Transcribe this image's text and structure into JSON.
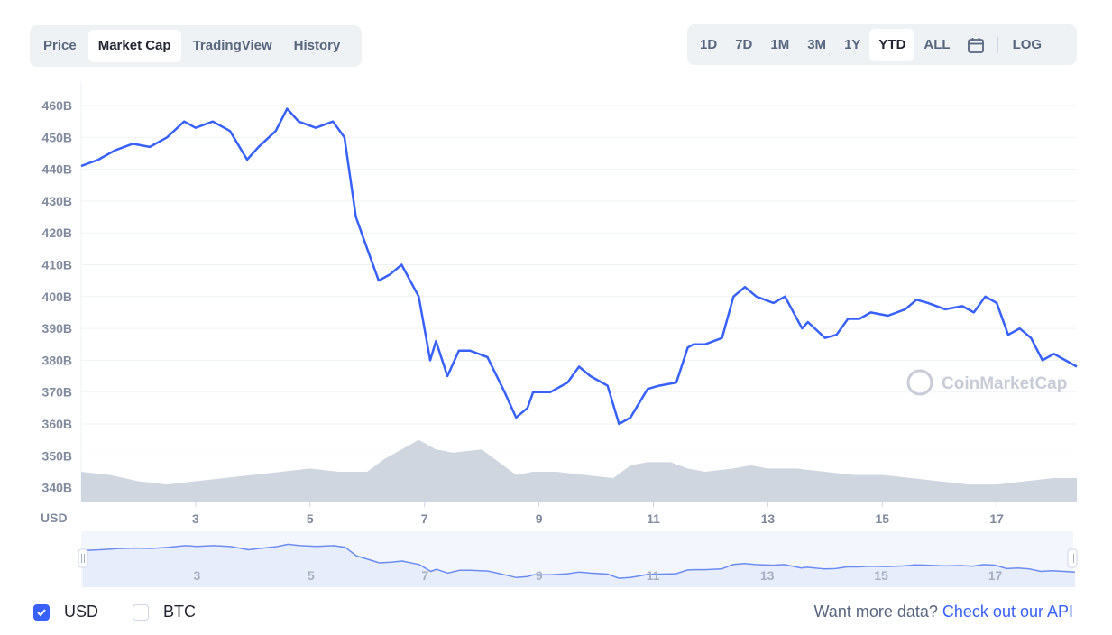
{
  "tabs": [
    "Price",
    "Market Cap",
    "TradingView",
    "History"
  ],
  "active_tab": 1,
  "ranges": [
    "1D",
    "7D",
    "1M",
    "3M",
    "1Y",
    "YTD",
    "ALL"
  ],
  "active_range": 5,
  "log_label": "LOG",
  "watermark": "CoinMarketCap",
  "currency_axis_label": "USD",
  "colors": {
    "line": "#3861fb",
    "volume": "#cfd6e0",
    "nav_fill": "#e8edfc",
    "grid": "#eff2f5"
  },
  "footer": {
    "usd_label": "USD",
    "btc_label": "BTC",
    "more_text": "Want more data?",
    "api_link": "Check out our API"
  },
  "chart_data": {
    "type": "line",
    "ylabel": "USD",
    "y_ticks": [
      "460B",
      "450B",
      "440B",
      "430B",
      "420B",
      "410B",
      "400B",
      "390B",
      "380B",
      "370B",
      "360B",
      "350B",
      "340B"
    ],
    "ylim": [
      335,
      465
    ],
    "x_ticks": [
      "3",
      "5",
      "7",
      "9",
      "11",
      "13",
      "15",
      "17"
    ],
    "xlim": [
      1,
      18.4
    ],
    "series": [
      {
        "x": [
          1,
          1.3,
          1.6,
          1.9,
          2.2,
          2.5,
          2.8,
          3,
          3.3,
          3.6,
          3.9,
          4.1,
          4.4,
          4.6,
          4.8,
          5.1,
          5.4,
          5.6,
          5.8,
          6,
          6.2,
          6.4,
          6.6,
          6.9,
          7.1,
          7.2,
          7.4,
          7.6,
          7.8,
          8.1,
          8.4,
          8.6,
          8.8,
          8.9,
          9.2,
          9.5,
          9.7,
          9.9,
          10.2,
          10.4,
          10.6,
          10.7,
          10.9,
          11.1,
          11.4,
          11.6,
          11.7,
          11.9,
          12.2,
          12.4,
          12.6,
          12.8,
          13.1,
          13.3,
          13.6,
          13.7,
          14,
          14.2,
          14.4,
          14.6,
          14.8,
          15.1,
          15.4,
          15.6,
          15.8,
          16.1,
          16.4,
          16.6,
          16.8,
          17,
          17.2,
          17.4,
          17.6,
          17.8,
          18,
          18.2,
          18.4
        ],
        "values": [
          441,
          443,
          446,
          448,
          447,
          450,
          455,
          453,
          455,
          452,
          443,
          447,
          452,
          459,
          455,
          453,
          455,
          450,
          425,
          415,
          405,
          407,
          410,
          400,
          380,
          386,
          375,
          383,
          383,
          381,
          370,
          362,
          365,
          370,
          370,
          373,
          378,
          375,
          372,
          360,
          362,
          365,
          371,
          372,
          373,
          384,
          385,
          385,
          387,
          400,
          403,
          400,
          398,
          400,
          390,
          392,
          387,
          388,
          393,
          393,
          395,
          394,
          396,
          399,
          398,
          396,
          397,
          395,
          400,
          398,
          388,
          390,
          387,
          380,
          382,
          380,
          378
        ]
      }
    ],
    "volume": {
      "x": [
        1,
        1.5,
        2,
        2.5,
        3,
        3.5,
        4,
        4.5,
        5,
        5.5,
        6,
        6.3,
        6.6,
        6.9,
        7.2,
        7.5,
        8,
        8.3,
        8.6,
        8.9,
        9.3,
        9.8,
        10.3,
        10.6,
        10.9,
        11.3,
        11.6,
        11.9,
        12.4,
        12.7,
        13,
        13.5,
        14,
        14.5,
        15,
        15.5,
        16,
        16.5,
        17,
        17.5,
        18,
        18.4
      ],
      "values": [
        345,
        344,
        342,
        341,
        342,
        343,
        344,
        345,
        346,
        345,
        345,
        349,
        352,
        355,
        352,
        351,
        352,
        348,
        344,
        345,
        345,
        344,
        343,
        347,
        348,
        348,
        346,
        345,
        346,
        347,
        346,
        346,
        345,
        344,
        344,
        343,
        342,
        341,
        341,
        342,
        343,
        343
      ]
    }
  }
}
